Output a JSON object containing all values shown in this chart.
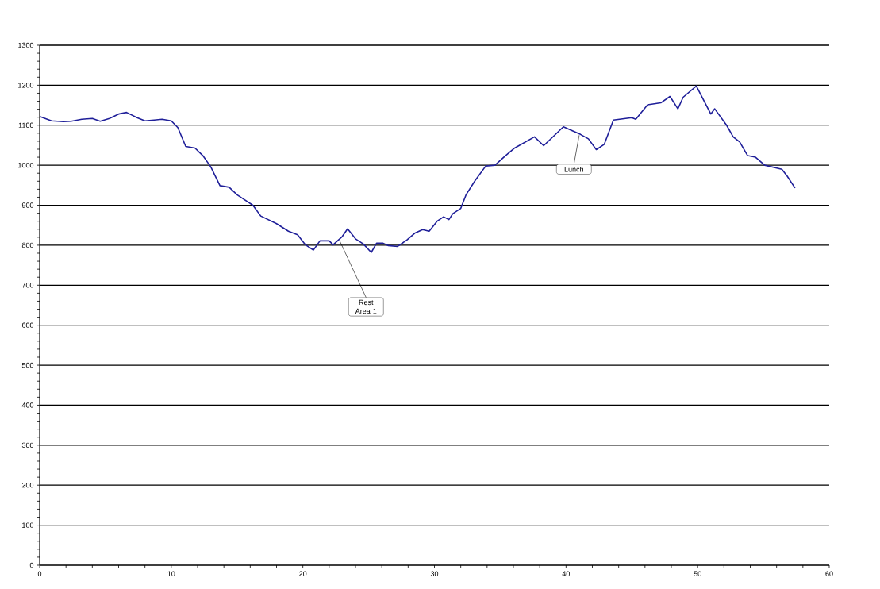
{
  "chart_data": {
    "type": "line",
    "xlim": [
      0,
      60
    ],
    "ylim": [
      0,
      1300
    ],
    "xticks": [
      0,
      10,
      20,
      30,
      40,
      50,
      60
    ],
    "yticks": [
      0,
      100,
      200,
      300,
      400,
      500,
      600,
      700,
      800,
      900,
      1000,
      1100,
      1200,
      1300
    ],
    "grid": "y",
    "marker": "none",
    "line_style": "solid",
    "annotations": [
      {
        "text": "Rest Area 1",
        "x": 22.8,
        "y": 811
      },
      {
        "text": "Lunch",
        "x": 41.0,
        "y": 1075
      }
    ],
    "series": [
      {
        "color": "#1f1f99",
        "x": [
          0,
          0.9,
          1.8,
          2.4,
          3.2,
          4.0,
          4.6,
          5.3,
          6.0,
          6.6,
          7.4,
          8.0,
          8.7,
          9.3,
          10.0,
          10.5,
          11.1,
          11.8,
          12.4,
          13.0,
          13.7,
          14.4,
          15.0,
          16.2,
          16.8,
          18.0,
          18.9,
          19.6,
          20.2,
          20.8,
          21.3,
          22.0,
          22.3,
          23.0,
          23.4,
          24.0,
          24.6,
          25.2,
          25.6,
          26.1,
          26.5,
          27.2,
          27.9,
          28.5,
          29.1,
          29.6,
          30.2,
          30.7,
          31.1,
          31.4,
          32.0,
          32.4,
          33.1,
          33.9,
          34.6,
          35.4,
          36.1,
          37.6,
          38.3,
          39.8,
          41.1,
          41.7,
          42.3,
          42.9,
          43.6,
          45.0,
          45.3,
          46.2,
          47.2,
          47.9,
          48.5,
          48.9,
          49.9,
          51.0,
          51.3,
          52.2,
          52.7,
          53.2,
          53.8,
          54.4,
          55.1,
          56.4,
          56.8,
          57.4
        ],
        "values": [
          1122,
          1111,
          1109,
          1110,
          1115,
          1117,
          1110,
          1117,
          1128,
          1132,
          1119,
          1111,
          1113,
          1115,
          1111,
          1094,
          1047,
          1043,
          1024,
          996,
          949,
          945,
          926,
          900,
          873,
          854,
          835,
          826,
          801,
          788,
          811,
          811,
          801,
          822,
          841,
          816,
          803,
          782,
          805,
          805,
          799,
          797,
          813,
          830,
          839,
          835,
          860,
          871,
          864,
          879,
          892,
          926,
          962,
          998,
          1000,
          1024,
          1043,
          1071,
          1049,
          1096,
          1077,
          1066,
          1039,
          1052,
          1113,
          1119,
          1115,
          1151,
          1156,
          1172,
          1141,
          1170,
          1198,
          1128,
          1141,
          1100,
          1071,
          1058,
          1024,
          1020,
          1000,
          990,
          973,
          943
        ]
      }
    ]
  }
}
